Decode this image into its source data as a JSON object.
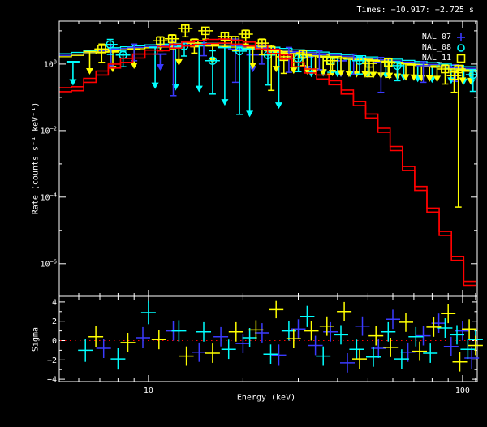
{
  "header": {
    "times": "Times: −10.917: −2.725 s"
  },
  "legend": {
    "items": [
      {
        "label": "NAL_07",
        "marker": "plus-icon",
        "color": "#3a3aff"
      },
      {
        "label": "NAL_08",
        "marker": "circle-icon",
        "color": "#00ffff"
      },
      {
        "label": "NAL_11",
        "marker": "square-icon",
        "color": "#ffff00"
      }
    ]
  },
  "colors": {
    "background": "#000000",
    "axis": "#ffffff",
    "model_red": "#ff0000",
    "zero_line": "#ff0000",
    "nal07": "#3a3aff",
    "nal08": "#00ffff",
    "nal11": "#ffff00"
  },
  "chart_data": [
    {
      "type": "line",
      "panel": "spectrum",
      "xlabel": "Energy (keV)",
      "ylabel": "Rate (counts s⁻¹ keV⁻¹)",
      "xscale": "log",
      "yscale": "log",
      "xlim": [
        5.2,
        111.4
      ],
      "ylim_log10": [
        -6.98,
        1.29
      ],
      "x_ticks": {
        "major": [
          10,
          100
        ],
        "labels": [
          "10",
          "100"
        ],
        "minor": [
          6,
          7,
          8,
          9,
          20,
          30,
          40,
          50,
          60,
          70,
          80,
          90,
          110
        ]
      },
      "y_ticks": {
        "major_exp": [
          0,
          -2,
          -4,
          -6
        ],
        "minor_exp": [
          1,
          -1,
          -3,
          -5
        ]
      },
      "legend_position": "top-right",
      "grid": false,
      "models": {
        "E_edges": [
          5.2,
          5.69,
          6.22,
          6.81,
          7.45,
          8.15,
          8.91,
          9.75,
          10.67,
          11.67,
          12.77,
          13.97,
          15.28,
          16.72,
          18.29,
          20.01,
          21.89,
          23.95,
          26.2,
          28.66,
          31.36,
          34.31,
          37.53,
          41.06,
          44.92,
          49.14,
          53.76,
          58.82,
          64.35,
          70.4,
          77.02,
          84.26,
          92.18,
          100.85,
          110.33
        ],
        "red_log10": [
          -0.83,
          -0.8,
          -0.55,
          -0.33,
          -0.12,
          0.05,
          0.18,
          0.3,
          0.4,
          0.48,
          0.54,
          0.59,
          0.62,
          0.63,
          0.6,
          0.54,
          0.45,
          0.32,
          0.15,
          -0.08,
          -0.27,
          -0.45,
          -0.62,
          -0.9,
          -1.25,
          -1.62,
          -2.05,
          -2.6,
          -3.2,
          -3.8,
          -4.45,
          -5.15,
          -5.9,
          -6.65
        ],
        "red_second_offset": 0.12,
        "folded_log10": [
          0.26,
          0.3,
          0.35,
          0.4,
          0.44,
          0.47,
          0.5,
          0.53,
          0.55,
          0.57,
          0.58,
          0.585,
          0.58,
          0.57,
          0.55,
          0.52,
          0.49,
          0.455,
          0.42,
          0.38,
          0.345,
          0.31,
          0.27,
          0.235,
          0.2,
          0.165,
          0.13,
          0.095,
          0.06,
          0.025,
          -0.01,
          -0.05,
          -0.09,
          -0.13
        ],
        "folded_offsets": {
          "NAL_07": 0.0,
          "NAL_08": 0.05,
          "NAL_11": -0.04
        }
      },
      "points": {
        "NAL_07": [
          [
            7.6,
            0.45,
            0.12,
            0.5
          ],
          [
            9.0,
            0.5,
            0.1,
            0.4
          ],
          [
            12.0,
            0.55,
            0.15,
            1.5
          ],
          [
            15.0,
            0.6,
            0.1,
            0.35
          ],
          [
            18.9,
            0.45,
            0.3,
            1.0
          ],
          [
            23.0,
            0.5,
            0.12,
            0.5
          ],
          [
            28.0,
            0.35,
            0.15,
            0.6
          ],
          [
            35.0,
            0.28,
            0.12,
            0.45
          ],
          [
            45.0,
            0.18,
            0.12,
            0.5
          ],
          [
            55.0,
            0.05,
            0.15,
            0.9
          ],
          [
            75.0,
            -0.05,
            0.12,
            0.5
          ],
          [
            95.0,
            -0.12,
            0.1,
            0.4
          ]
        ],
        "NAL_08": [
          [
            7.55,
            0.59,
            0.15,
            0.3
          ],
          [
            8.3,
            0.27,
            0.12,
            0.35
          ],
          [
            13.0,
            0.54,
            0.12,
            0.3
          ],
          [
            16.0,
            0.1,
            0.3,
            1.0
          ],
          [
            19.5,
            0.39,
            0.12,
            1.9
          ],
          [
            24.0,
            0.27,
            0.15,
            0.9
          ],
          [
            30.0,
            0.17,
            0.12,
            0.4
          ],
          [
            38.0,
            0.1,
            0.12,
            0.35
          ],
          [
            47.0,
            0.1,
            0.12,
            0.4
          ],
          [
            62.0,
            -0.05,
            0.12,
            0.45
          ],
          [
            108.0,
            -0.32,
            0.15,
            0.5
          ]
        ],
        "NAL_11": [
          [
            7.1,
            0.45,
            0.15,
            0.4
          ],
          [
            10.9,
            0.7,
            0.12,
            0.3
          ],
          [
            11.9,
            0.76,
            0.12,
            0.3
          ],
          [
            13.1,
            1.07,
            0.1,
            0.25
          ],
          [
            14.0,
            0.63,
            0.12,
            0.3
          ],
          [
            15.2,
            1.0,
            0.1,
            0.25
          ],
          [
            17.5,
            0.83,
            0.12,
            0.3
          ],
          [
            18.9,
            0.71,
            0.12,
            0.3
          ],
          [
            20.4,
            0.9,
            0.12,
            0.3
          ],
          [
            23.0,
            0.63,
            0.12,
            0.35
          ],
          [
            24.6,
            0.41,
            0.15,
            1.2
          ],
          [
            27.0,
            0.22,
            0.15,
            0.5
          ],
          [
            31.0,
            0.3,
            0.12,
            0.35
          ],
          [
            38.0,
            0.1,
            0.12,
            0.4
          ],
          [
            50.5,
            0.02,
            0.12,
            0.4
          ],
          [
            58.0,
            0.05,
            0.12,
            0.45
          ],
          [
            88.0,
            -0.15,
            0.12,
            0.45
          ],
          [
            94.0,
            -0.35,
            0.15,
            0.5
          ],
          [
            97.0,
            -0.15,
            0.1,
            4.15
          ]
        ]
      },
      "upper_limits": {
        "NAL_07": [
          [
            10.9,
            0.3,
            -0.15
          ],
          [
            21.5,
            0.28,
            -0.2
          ],
          [
            32.0,
            0.2,
            -0.2
          ],
          [
            41.0,
            0.1,
            -0.35
          ]
        ],
        "NAL_08": [
          [
            5.75,
            0.07,
            -0.6
          ],
          [
            10.5,
            0.5,
            -0.7
          ],
          [
            12.2,
            0.52,
            -0.75
          ],
          [
            14.5,
            0.55,
            -0.8
          ],
          [
            17.5,
            0.5,
            -1.2
          ],
          [
            21.0,
            0.45,
            -1.55
          ],
          [
            26.0,
            0.35,
            -1.3
          ],
          [
            33.0,
            0.25,
            -0.35
          ],
          [
            36.0,
            0.22,
            -0.33
          ],
          [
            40.0,
            0.18,
            -0.35
          ],
          [
            44.0,
            0.15,
            -0.35
          ],
          [
            50.0,
            0.12,
            -0.38
          ],
          [
            57.0,
            0.08,
            -0.4
          ],
          [
            65.0,
            0.02,
            -0.45
          ],
          [
            72.0,
            -0.02,
            -0.5
          ],
          [
            80.0,
            -0.07,
            -0.52
          ],
          [
            92.0,
            -0.14,
            -0.55
          ],
          [
            101.0,
            -0.18,
            -0.58
          ],
          [
            107.0,
            -0.2,
            -0.6
          ]
        ],
        "NAL_11": [
          [
            6.5,
            0.37,
            -0.27
          ],
          [
            7.7,
            0.37,
            -0.2
          ],
          [
            9.0,
            0.45,
            -0.1
          ],
          [
            12.5,
            0.55,
            0.0
          ],
          [
            16.0,
            0.6,
            0.05
          ],
          [
            21.5,
            0.5,
            -0.1
          ],
          [
            25.5,
            0.4,
            -0.2
          ],
          [
            29.0,
            0.33,
            -0.25
          ],
          [
            32.0,
            0.28,
            -0.27
          ],
          [
            34.0,
            0.25,
            -0.28
          ],
          [
            36.0,
            0.22,
            -0.3
          ],
          [
            38.5,
            0.2,
            -0.32
          ],
          [
            41.0,
            0.18,
            -0.33
          ],
          [
            43.5,
            0.16,
            -0.35
          ],
          [
            46.0,
            0.14,
            -0.36
          ],
          [
            49.0,
            0.12,
            -0.37
          ],
          [
            52.0,
            0.1,
            -0.38
          ],
          [
            55.0,
            0.08,
            -0.4
          ],
          [
            58.5,
            0.06,
            -0.41
          ],
          [
            62.0,
            0.04,
            -0.43
          ],
          [
            66.0,
            0.01,
            -0.45
          ],
          [
            70.0,
            -0.02,
            -0.46
          ],
          [
            74.0,
            -0.04,
            -0.48
          ],
          [
            78.5,
            -0.07,
            -0.49
          ],
          [
            83.0,
            -0.09,
            -0.5
          ],
          [
            100.0,
            -0.19,
            -0.55
          ],
          [
            106.0,
            -0.21,
            -0.56
          ]
        ]
      }
    },
    {
      "type": "scatter",
      "panel": "residuals",
      "ylabel": "Sigma",
      "xscale": "log",
      "ylim": [
        -4.24,
        4.58
      ],
      "y_ticks": {
        "major": [
          4,
          2,
          0,
          -2,
          -4
        ],
        "labels": [
          "4",
          "2",
          "0",
          "−2",
          "−4"
        ],
        "minor": [
          3,
          1,
          -1,
          -3
        ]
      },
      "zero_line": {
        "value": 0,
        "style": "dotted",
        "color": "#ff0000"
      },
      "points": {
        "NAL_07": [
          [
            7.2,
            -0.8,
            1.0
          ],
          [
            9.6,
            0.3,
            1.1
          ],
          [
            12,
            1.0,
            1.0
          ],
          [
            14.5,
            -1.2,
            1.0
          ],
          [
            17,
            0.4,
            1.0
          ],
          [
            20,
            -0.3,
            1.0
          ],
          [
            23,
            0.8,
            1.0
          ],
          [
            26,
            -1.5,
            1.1
          ],
          [
            30,
            1.2,
            1.0
          ],
          [
            34,
            -0.5,
            1.0
          ],
          [
            38,
            0.9,
            1.0
          ],
          [
            43,
            -2.3,
            1.0
          ],
          [
            48,
            1.5,
            1.0
          ],
          [
            54,
            -0.8,
            1.0
          ],
          [
            60,
            2.2,
            1.0
          ],
          [
            67,
            -1.2,
            1.0
          ],
          [
            75,
            0.5,
            1.0
          ],
          [
            84,
            1.8,
            1.0
          ],
          [
            92,
            -0.6,
            1.0
          ],
          [
            100,
            1.0,
            1.0
          ],
          [
            107,
            -1.8,
            1.1
          ]
        ],
        "NAL_08": [
          [
            6.3,
            -1.0,
            1.2
          ],
          [
            8.0,
            -1.9,
            1.1
          ],
          [
            10.0,
            2.9,
            1.2
          ],
          [
            12.5,
            1.0,
            1.1
          ],
          [
            15,
            0.9,
            1.0
          ],
          [
            18,
            -0.9,
            1.0
          ],
          [
            21,
            0.3,
            1.0
          ],
          [
            24.5,
            -1.4,
            1.0
          ],
          [
            28,
            1.0,
            1.0
          ],
          [
            32,
            2.5,
            1.1
          ],
          [
            36,
            -1.6,
            1.0
          ],
          [
            41,
            0.6,
            1.0
          ],
          [
            46,
            -0.9,
            1.0
          ],
          [
            52,
            -1.7,
            1.0
          ],
          [
            58,
            0.9,
            1.0
          ],
          [
            64,
            -1.9,
            1.0
          ],
          [
            71,
            0.4,
            1.0
          ],
          [
            79,
            -1.3,
            1.0
          ],
          [
            88,
            1.3,
            1.0
          ],
          [
            96,
            0.6,
            1.0
          ],
          [
            104,
            -0.9,
            1.0
          ],
          [
            110,
            0.1,
            1.0
          ]
        ],
        "NAL_11": [
          [
            6.8,
            0.4,
            1.1
          ],
          [
            8.6,
            -0.2,
            1.0
          ],
          [
            10.8,
            0.1,
            1.0
          ],
          [
            13.2,
            -1.6,
            1.0
          ],
          [
            16,
            -1.3,
            1.0
          ],
          [
            19,
            0.9,
            1.0
          ],
          [
            22,
            1.1,
            1.0
          ],
          [
            25.5,
            3.2,
            0.9
          ],
          [
            29,
            0.2,
            1.0
          ],
          [
            33,
            1.0,
            1.0
          ],
          [
            37,
            1.5,
            1.0
          ],
          [
            42,
            3.0,
            1.0
          ],
          [
            47,
            -1.9,
            1.0
          ],
          [
            53,
            0.5,
            1.0
          ],
          [
            59,
            -0.7,
            1.0
          ],
          [
            66,
            1.9,
            1.0
          ],
          [
            73,
            -1.1,
            1.0
          ],
          [
            81,
            1.4,
            1.0
          ],
          [
            90,
            2.8,
            1.0
          ],
          [
            98,
            -2.2,
            1.0
          ],
          [
            105,
            1.2,
            1.0
          ],
          [
            110,
            -0.5,
            1.0
          ]
        ]
      }
    }
  ]
}
